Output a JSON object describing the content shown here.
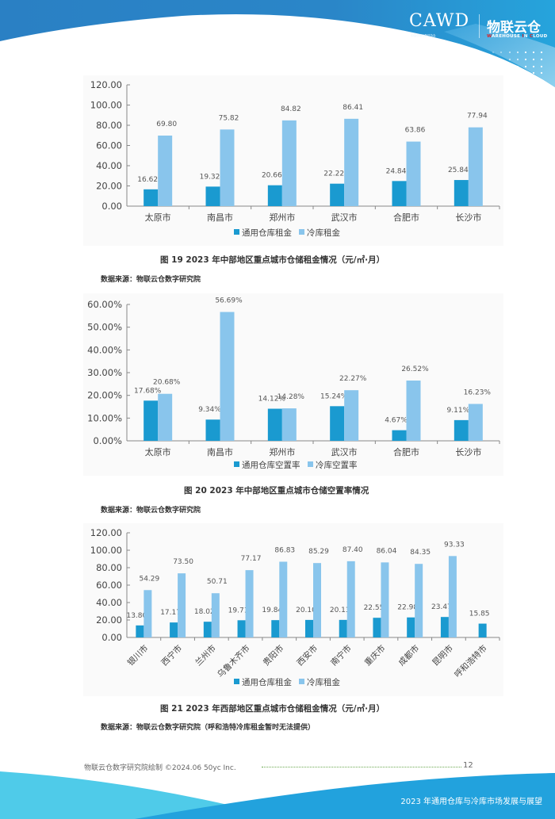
{
  "header": {
    "logo_cawd": "CAWD",
    "logo_cawd_sub": "中国仓储与配送协会",
    "logo_wic": "物联云仓",
    "logo_wic_sub_parts": [
      "W",
      "AREHOUSE ",
      "I",
      "N ",
      "C",
      "LOUD"
    ]
  },
  "colors": {
    "general": "#1a9ad0",
    "cold": "#89c5ec",
    "header_blue": "#2a86c8",
    "footer_blue": "#22a2dd",
    "footer_light": "#4fcbe9"
  },
  "figure19": {
    "caption": "图 19   2023 年中部地区重点城市仓储租金情况（元/㎡·月）",
    "source": "数据来源：物联云仓数字研究院"
  },
  "figure20": {
    "caption": "图 20   2023 年中部地区重点城市仓储空置率情况",
    "source": "数据来源：物联云仓数字研究院"
  },
  "figure21": {
    "caption": "图 21   2023 年西部地区重点城市仓储租金情况（元/㎡·月）",
    "source": "数据来源：物联云仓数字研究院（呼和浩特冷库租金暂时无法提供）"
  },
  "footer": {
    "credit": "物联云仓数字研究院绘制  ©2024.06 50yc Inc.",
    "page": "12",
    "report_title": "2023 年通用仓库与冷库市场发展与展望"
  },
  "chart_data": [
    {
      "type": "bar",
      "title": "2023 年中部地区重点城市仓储租金情况（元/㎡·月）",
      "xlabel": "",
      "ylabel": "",
      "categories": [
        "太原市",
        "南昌市",
        "郑州市",
        "武汉市",
        "合肥市",
        "长沙市"
      ],
      "series": [
        {
          "name": "通用仓库租金",
          "values": [
            16.62,
            19.32,
            20.66,
            22.22,
            24.84,
            25.84
          ]
        },
        {
          "name": "冷库租金",
          "values": [
            69.8,
            75.82,
            84.82,
            86.41,
            63.86,
            77.94
          ]
        }
      ],
      "ylim": [
        0,
        120
      ],
      "yticks": [
        "0.00",
        "20.00",
        "40.00",
        "60.00",
        "80.00",
        "100.00",
        "120.00"
      ],
      "grid": false,
      "legend_position": "bottom"
    },
    {
      "type": "bar",
      "title": "2023 年中部地区重点城市仓储空置率情况",
      "xlabel": "",
      "ylabel": "",
      "categories": [
        "太原市",
        "南昌市",
        "郑州市",
        "武汉市",
        "合肥市",
        "长沙市"
      ],
      "series": [
        {
          "name": "通用仓库空置率",
          "values": [
            17.68,
            9.34,
            14.12,
            15.24,
            4.67,
            9.11
          ],
          "labels": [
            "17.68%",
            "9.34%",
            "14.12%",
            "15.24%",
            "4.67%",
            "9.11%"
          ]
        },
        {
          "name": "冷库空置率",
          "values": [
            20.68,
            56.69,
            14.28,
            22.27,
            26.52,
            16.23
          ],
          "labels": [
            "20.68%",
            "56.69%",
            "14.28%",
            "22.27%",
            "26.52%",
            "16.23%"
          ]
        }
      ],
      "ylim": [
        0,
        60
      ],
      "yticks": [
        "0.00%",
        "10.00%",
        "20.00%",
        "30.00%",
        "40.00%",
        "50.00%",
        "60.00%"
      ],
      "grid": false,
      "legend_position": "bottom"
    },
    {
      "type": "bar",
      "title": "2023 年西部地区重点城市仓储租金情况（元/㎡·月）",
      "xlabel": "",
      "ylabel": "",
      "categories": [
        "银川市",
        "西宁市",
        "兰州市",
        "乌鲁木齐市",
        "贵阳市",
        "西安市",
        "南宁市",
        "重庆市",
        "成都市",
        "昆明市",
        "呼和浩特市"
      ],
      "series": [
        {
          "name": "通用仓库租金",
          "values": [
            13.8,
            17.17,
            18.02,
            19.71,
            19.84,
            20.1,
            20.13,
            22.55,
            22.98,
            23.47,
            15.85
          ]
        },
        {
          "name": "冷库租金",
          "values": [
            54.29,
            73.5,
            50.71,
            77.17,
            86.83,
            85.29,
            87.4,
            86.04,
            84.35,
            93.33,
            null
          ]
        }
      ],
      "ylim": [
        0,
        120
      ],
      "yticks": [
        "0.00",
        "20.00",
        "40.00",
        "60.00",
        "80.00",
        "100.00",
        "120.00"
      ],
      "grid": false,
      "legend_position": "bottom"
    }
  ]
}
